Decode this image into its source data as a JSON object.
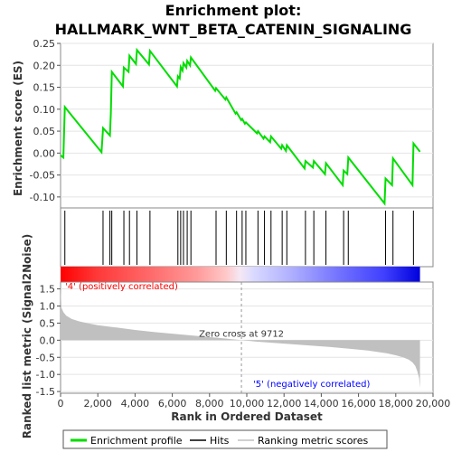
{
  "chart_data": {
    "type": "line",
    "title_line1": "Enrichment plot:",
    "title_line2": "HALLMARK_WNT_BETA_CATENIN_SIGNALING",
    "es_panel": {
      "ylabel": "Enrichment score (ES)",
      "ylim": [
        -0.125,
        0.25
      ],
      "yticks": [
        "0.25",
        "0.20",
        "0.15",
        "0.10",
        "0.05",
        "0.00",
        "-0.05",
        "-0.10"
      ],
      "ytick_values": [
        0.25,
        0.2,
        0.15,
        0.1,
        0.05,
        0.0,
        -0.05,
        -0.1
      ],
      "color": "#00dd00",
      "x": [
        0,
        150,
        230,
        2200,
        2280,
        2650,
        2700,
        2750,
        3350,
        3400,
        3650,
        3700,
        4050,
        4100,
        4750,
        4800,
        6250,
        6300,
        6400,
        6450,
        6550,
        6600,
        6750,
        6800,
        6950,
        7000,
        8300,
        8350,
        8850,
        8900,
        9400,
        9450,
        9700,
        9750,
        9900,
        9950,
        10550,
        10600,
        10900,
        10950,
        11250,
        11300,
        11850,
        11900,
        12100,
        12150,
        13100,
        13150,
        13550,
        13600,
        14200,
        14250,
        15150,
        15200,
        15400,
        15450,
        17400,
        17450,
        17800,
        17850,
        18900,
        18950,
        19300
      ],
      "y": [
        -0.005,
        -0.01,
        0.105,
        0.002,
        0.057,
        0.04,
        0.09,
        0.185,
        0.152,
        0.195,
        0.185,
        0.222,
        0.203,
        0.235,
        0.202,
        0.233,
        0.152,
        0.175,
        0.17,
        0.196,
        0.188,
        0.205,
        0.195,
        0.21,
        0.2,
        0.218,
        0.142,
        0.148,
        0.122,
        0.127,
        0.09,
        0.093,
        0.075,
        0.078,
        0.067,
        0.07,
        0.045,
        0.05,
        0.033,
        0.038,
        0.025,
        0.038,
        0.01,
        0.018,
        0.005,
        0.018,
        -0.035,
        -0.018,
        -0.033,
        -0.018,
        -0.048,
        -0.023,
        -0.073,
        -0.04,
        -0.048,
        -0.01,
        -0.115,
        -0.058,
        -0.073,
        -0.012,
        -0.073,
        0.022,
        0.003
      ]
    },
    "hits": [
      230,
      2280,
      2650,
      2750,
      3400,
      3700,
      4100,
      4800,
      6300,
      6450,
      6600,
      6800,
      7000,
      8350,
      8900,
      9450,
      9750,
      9950,
      10600,
      10950,
      11300,
      11900,
      12150,
      13150,
      13600,
      14250,
      15200,
      15450,
      17450,
      17850,
      18950
    ],
    "metric_panel": {
      "ylabel": "Ranked list metric (Signal2Noise)",
      "ylim": [
        -1.55,
        1.7
      ],
      "yticks": [
        "1.5",
        "1.0",
        "0.5",
        "0.0",
        "-0.5",
        "-1.0",
        "-1.5"
      ],
      "ytick_values": [
        1.5,
        1.0,
        0.5,
        0.0,
        -0.5,
        -1.0,
        -1.5
      ],
      "profile_x": [
        0,
        50,
        150,
        300,
        600,
        1000,
        1500,
        2000,
        3000,
        4000,
        5000,
        6000,
        7000,
        8000,
        9000,
        9712,
        10500,
        11500,
        12500,
        13500,
        14500,
        15500,
        16500,
        17000,
        17500,
        18000,
        18400,
        18700,
        18900,
        19050,
        19150,
        19250,
        19300
      ],
      "profile_y": [
        1.58,
        0.95,
        0.82,
        0.72,
        0.62,
        0.55,
        0.49,
        0.44,
        0.37,
        0.3,
        0.24,
        0.19,
        0.14,
        0.09,
        0.04,
        0.0,
        -0.04,
        -0.08,
        -0.12,
        -0.16,
        -0.2,
        -0.25,
        -0.3,
        -0.34,
        -0.38,
        -0.44,
        -0.5,
        -0.57,
        -0.65,
        -0.75,
        -0.9,
        -1.1,
        -1.4
      ],
      "fill_color": "#c0c0c0",
      "zero_cross_rank": 9712,
      "zero_cross_label": "Zero cross at 9712",
      "pos_label": "'4' (positively correlated)",
      "pos_color": "#ff0000",
      "neg_label": "'5' (negatively correlated)",
      "neg_color": "#0000ff"
    },
    "xlabel": "Rank in Ordered Dataset",
    "xlim": [
      0,
      20000
    ],
    "xticks": [
      "0",
      "2,000",
      "4,000",
      "6,000",
      "8,000",
      "10,000",
      "12,000",
      "14,000",
      "16,000",
      "18,000",
      "20,000"
    ],
    "xtick_values": [
      0,
      2000,
      4000,
      6000,
      8000,
      10000,
      12000,
      14000,
      16000,
      18000,
      20000
    ],
    "n_genes": 19300,
    "legend": {
      "placement": "bottom",
      "items": [
        {
          "label": "Enrichment profile",
          "color": "#00dd00"
        },
        {
          "label": "Hits",
          "color": "#000000"
        },
        {
          "label": "Ranking metric scores",
          "color": "#c0c0c0"
        }
      ]
    }
  }
}
